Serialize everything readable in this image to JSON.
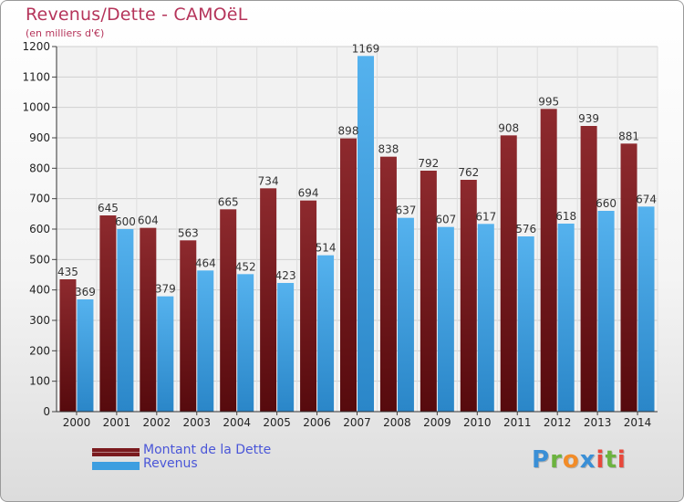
{
  "header": {
    "title": "Revenus/Dette - CAMOëL",
    "subtitle": "(en milliers d'€)"
  },
  "legend": [
    {
      "label": "Montant de la Dette",
      "color": "#7a1a1e"
    },
    {
      "label": "Revenus",
      "color": "#3d9ee0"
    }
  ],
  "logo": {
    "text": "Proxiti"
  },
  "chart_data": {
    "type": "bar",
    "title": "Revenus/Dette - CAMOëL",
    "subtitle": "(en milliers d'€)",
    "categories": [
      "2000",
      "2001",
      "2002",
      "2003",
      "2004",
      "2005",
      "2006",
      "2007",
      "2008",
      "2009",
      "2010",
      "2011",
      "2012",
      "2013",
      "2014"
    ],
    "series": [
      {
        "name": "Montant de la Dette",
        "color": "#7a1a1e",
        "values": [
          435,
          645,
          604,
          563,
          665,
          734,
          694,
          898,
          838,
          792,
          762,
          908,
          995,
          939,
          881
        ]
      },
      {
        "name": "Revenus",
        "color": "#3d9ee0",
        "values": [
          369,
          600,
          379,
          464,
          452,
          423,
          514,
          1169,
          637,
          607,
          617,
          576,
          618,
          660,
          674
        ]
      }
    ],
    "ylim": [
      0,
      1200
    ],
    "yticks": [
      0,
      100,
      200,
      300,
      400,
      500,
      600,
      700,
      800,
      900,
      1000,
      1100,
      1200
    ],
    "grid": true,
    "legend_position": "bottom-left"
  }
}
